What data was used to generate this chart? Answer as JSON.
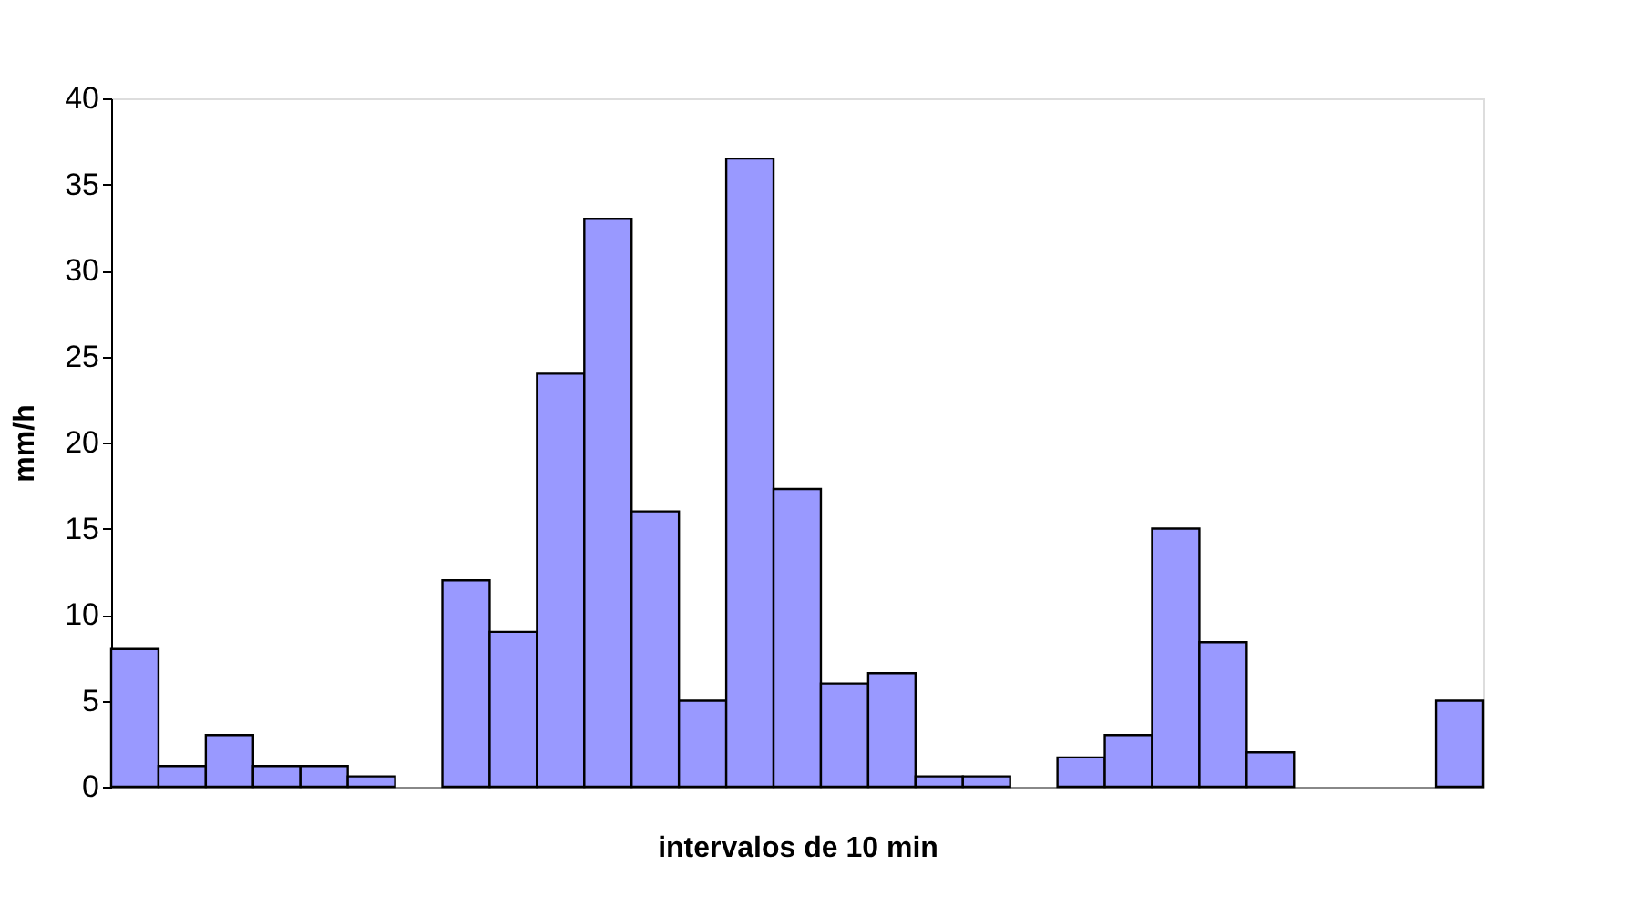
{
  "chart_data": {
    "type": "bar",
    "xlabel": "intervalos de 10 min",
    "ylabel": "mm/h",
    "categories": [
      null,
      null,
      null,
      null,
      null,
      null,
      null,
      null,
      null,
      null,
      null,
      null,
      null,
      null,
      null,
      null,
      null,
      null,
      null,
      null,
      null,
      null,
      null,
      null,
      null,
      null,
      null,
      null,
      null
    ],
    "values": [
      8,
      1.2,
      3,
      1.2,
      1.2,
      0.6,
      null,
      12,
      9,
      24,
      33,
      16,
      5,
      36.5,
      17.3,
      6,
      6.6,
      0.6,
      0.6,
      null,
      1.7,
      3,
      15,
      8.4,
      2,
      null,
      null,
      null,
      5
    ],
    "color": "#9999ff",
    "ylim": [
      0,
      40
    ],
    "yticks": [
      0,
      5,
      10,
      15,
      20,
      25,
      30,
      35,
      40
    ],
    "grid": false,
    "tick_labels": "y"
  }
}
